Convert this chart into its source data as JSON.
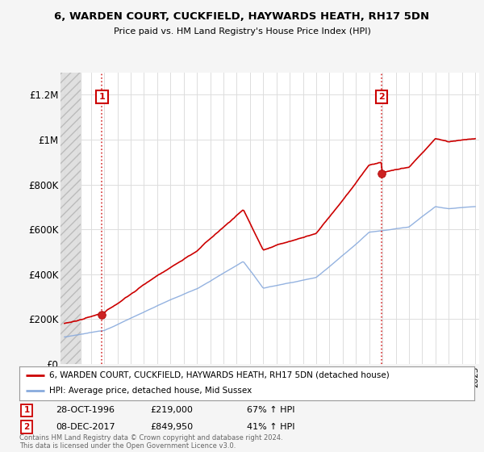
{
  "title": "6, WARDEN COURT, CUCKFIELD, HAYWARDS HEATH, RH17 5DN",
  "subtitle": "Price paid vs. HM Land Registry's House Price Index (HPI)",
  "legend_label_red": "6, WARDEN COURT, CUCKFIELD, HAYWARDS HEATH, RH17 5DN (detached house)",
  "legend_label_blue": "HPI: Average price, detached house, Mid Sussex",
  "sale1_date": "28-OCT-1996",
  "sale1_price": 219000,
  "sale1_hpi": "67% ↑ HPI",
  "sale2_date": "08-DEC-2017",
  "sale2_price": 849950,
  "sale2_hpi": "41% ↑ HPI",
  "footer": "Contains HM Land Registry data © Crown copyright and database right 2024.\nThis data is licensed under the Open Government Licence v3.0.",
  "ylim_min": 0,
  "ylim_max": 1300000,
  "yticks": [
    0,
    200000,
    400000,
    600000,
    800000,
    1000000,
    1200000
  ],
  "ytick_labels": [
    "£0",
    "£200K",
    "£400K",
    "£600K",
    "£800K",
    "£1M",
    "£1.2M"
  ],
  "red_color": "#cc0000",
  "blue_color": "#88aadd",
  "background_color": "#f5f5f5",
  "plot_bg_color": "#ffffff",
  "xlim_min": 1993.7,
  "xlim_max": 2025.3,
  "hatch_end": 1995.2,
  "sale1_t": 1996.833,
  "sale2_t": 2017.917
}
